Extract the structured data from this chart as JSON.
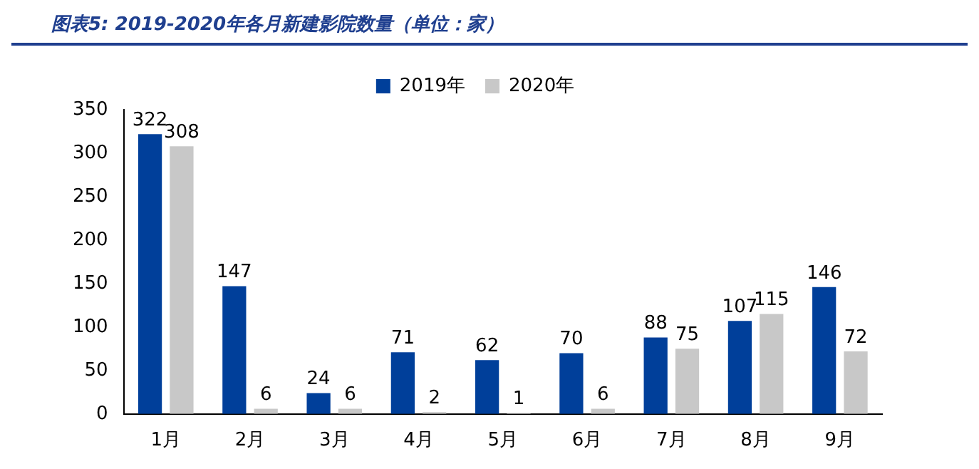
{
  "chart_data": {
    "type": "bar",
    "title": "图表5: 2019-2020年各月新建影院数量（单位：家）",
    "categories": [
      "1月",
      "2月",
      "3月",
      "4月",
      "5月",
      "6月",
      "7月",
      "8月",
      "9月"
    ],
    "series": [
      {
        "name": "2019年",
        "color": "#003f9a",
        "values": [
          322,
          147,
          24,
          71,
          62,
          70,
          88,
          107,
          146
        ]
      },
      {
        "name": "2020年",
        "color": "#c8c8c8",
        "values": [
          308,
          6,
          6,
          2,
          1,
          6,
          75,
          115,
          72
        ]
      }
    ],
    "ylim": [
      0,
      350
    ],
    "yticks": [
      0,
      50,
      100,
      150,
      200,
      250,
      300,
      350
    ],
    "grid": false,
    "legend": "top",
    "data_labels": true
  }
}
